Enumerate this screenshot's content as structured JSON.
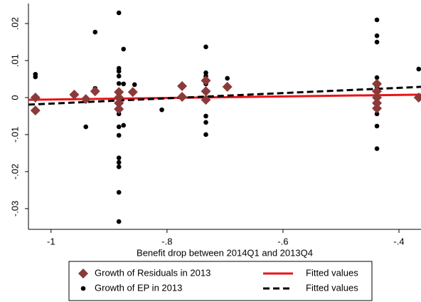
{
  "chart_data": {
    "type": "scatter",
    "xlabel": "Benefit drop between 2014Q1 and 2013Q4",
    "xlim": [
      -1.039,
      -0.362
    ],
    "ylim": [
      -0.0356,
      0.0254
    ],
    "xticks": [
      -1,
      {
        "value": -0.8,
        "label": "-.8"
      },
      {
        "value": -0.6,
        "label": "-.6"
      },
      {
        "value": -0.4,
        "label": "-.4"
      }
    ],
    "yticks": [
      {
        "value": 0.02,
        "label": ".02"
      },
      {
        "value": 0.01,
        "label": ".01"
      },
      0,
      {
        "value": -0.01,
        "label": "-.01"
      },
      {
        "value": -0.02,
        "label": "-.02"
      },
      {
        "value": -0.03,
        "label": "-.03"
      }
    ],
    "grid": false,
    "series": [
      {
        "name": "Growth of Residuals in 2013",
        "type": "scatter",
        "marker": "diamond",
        "color": "#8b3a3a",
        "x": [
          -1.027,
          -1.027,
          -0.96,
          -0.94,
          -0.924,
          -0.883,
          -0.883,
          -0.883,
          -0.883,
          -0.859,
          -0.774,
          -0.774,
          -0.733,
          -0.733,
          -0.733,
          -0.696,
          -0.438,
          -0.438,
          -0.438,
          -0.438,
          -0.438,
          -0.366
        ],
        "values": [
          0,
          -0.0035,
          0.0008,
          -0.0004,
          0.0017,
          0.0015,
          0,
          -0.0015,
          -0.0031,
          0.0015,
          0.0031,
          0.0002,
          0.0046,
          0.0017,
          -0.0006,
          0.0029,
          0.0037,
          0.0017,
          0,
          -0.0015,
          -0.0029,
          0
        ]
      },
      {
        "name": "Fitted values",
        "type": "line",
        "dashed": false,
        "color": "#e8141a",
        "x": [
          -1.039,
          -0.362
        ],
        "values": [
          -0.0006,
          0.0008
        ]
      },
      {
        "name": "Growth of EP in 2013",
        "type": "scatter",
        "marker": "circle",
        "color": "#000000",
        "x": [
          -1.027,
          -1.027,
          -1.027,
          -0.94,
          -0.924,
          -0.924,
          -0.883,
          -0.883,
          -0.883,
          -0.883,
          -0.883,
          -0.883,
          -0.883,
          -0.883,
          -0.883,
          -0.883,
          -0.883,
          -0.883,
          -0.883,
          -0.883,
          -0.883,
          -0.883,
          -0.883,
          -0.875,
          -0.875,
          -0.875,
          -0.856,
          -0.809,
          -0.733,
          -0.733,
          -0.733,
          -0.733,
          -0.733,
          -0.733,
          -0.733,
          -0.696,
          -0.438,
          -0.438,
          -0.438,
          -0.438,
          -0.438,
          -0.438,
          -0.438,
          -0.438,
          -0.366
        ],
        "values": [
          0.0063,
          0.0056,
          -0.0035,
          -0.0079,
          0.0177,
          0.0025,
          0.0229,
          0.0079,
          0.0071,
          0.0058,
          0.0038,
          0.0008,
          -0.0006,
          -0.0017,
          -0.0029,
          -0.0044,
          -0.0079,
          -0.0102,
          -0.0163,
          -0.0175,
          -0.0187,
          -0.0256,
          -0.0335,
          0.0131,
          0.0037,
          -0.0075,
          0.0035,
          -0.0033,
          0.0137,
          0.0067,
          0.0058,
          0.0037,
          -0.005,
          -0.0067,
          -0.01,
          0.0052,
          0.021,
          0.0167,
          0.015,
          0.0054,
          0.0029,
          -0.0044,
          -0.0077,
          -0.0138,
          0.0077
        ]
      },
      {
        "name": "Fitted values",
        "type": "line",
        "dashed": true,
        "color": "#000000",
        "x": [
          -1.039,
          -0.362
        ],
        "values": [
          -0.0019,
          0.0029
        ]
      }
    ]
  }
}
